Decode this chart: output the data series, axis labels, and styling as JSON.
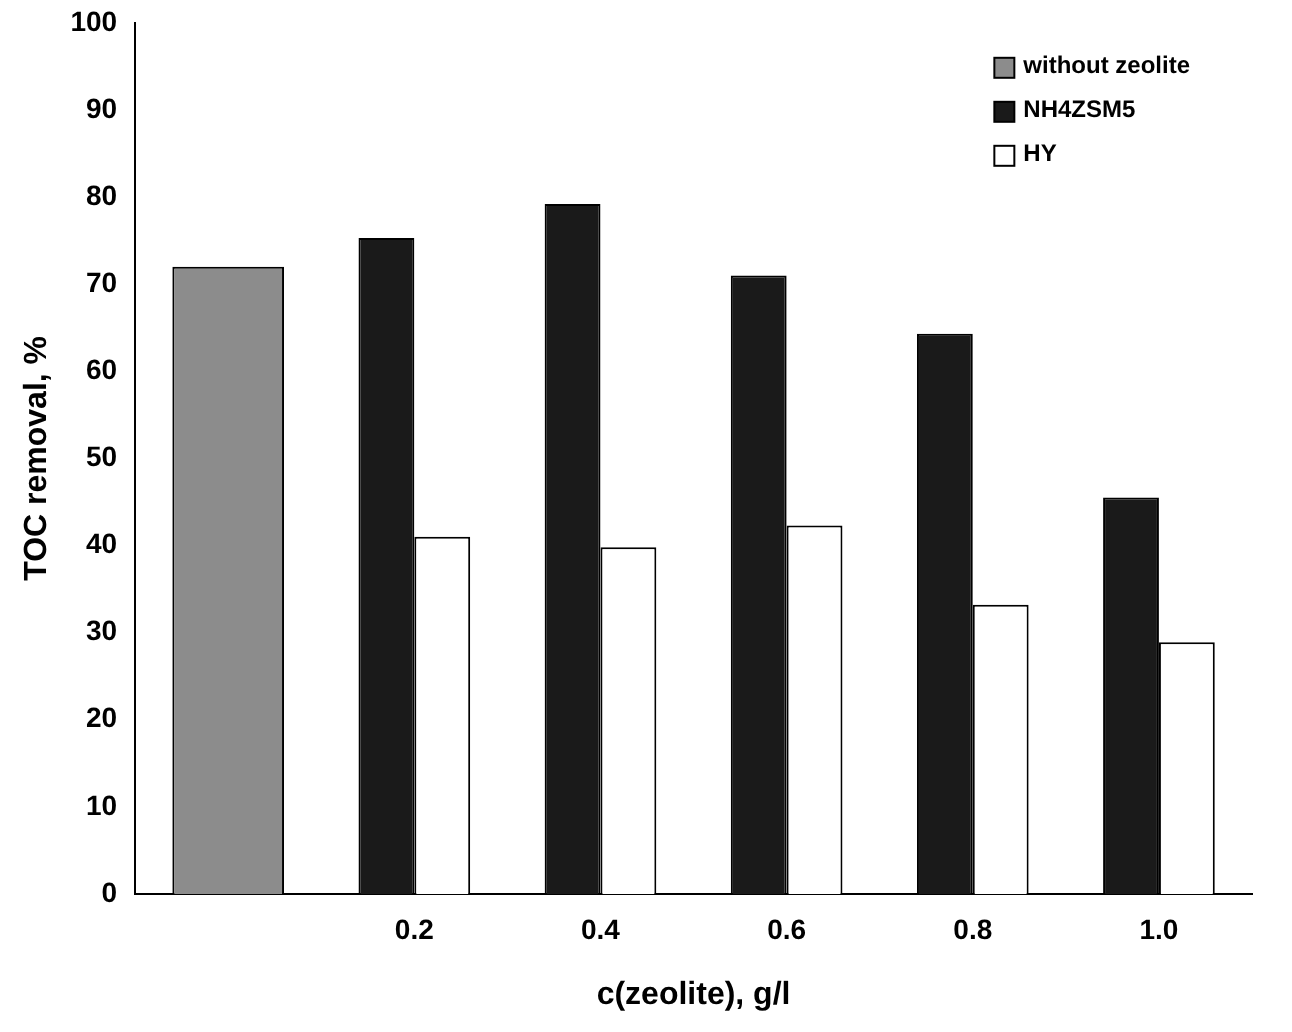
{
  "chart_data": {
    "type": "bar",
    "xlabel": "c(zeolite), g/l",
    "ylabel": "TOC removal, %",
    "categories": [
      null,
      "0.2",
      "0.4",
      "0.6",
      "0.8",
      "1.0"
    ],
    "series": [
      {
        "name": "without zeolite",
        "color": "#8c8c8c",
        "values": [
          72,
          null,
          null,
          null,
          null,
          null
        ]
      },
      {
        "name": "NH4ZSM5",
        "color": "#1a1a1a",
        "values": [
          null,
          75.3,
          79.2,
          71,
          64.3,
          45.5
        ]
      },
      {
        "name": "HY",
        "color": "#ffffff",
        "values": [
          null,
          41,
          39.8,
          42.3,
          33.2,
          28.9
        ]
      }
    ],
    "ylim": [
      0,
      100
    ],
    "yticks": [
      0,
      10,
      20,
      30,
      40,
      50,
      60,
      70,
      80,
      90,
      100
    ],
    "grid": false,
    "legend": "top right"
  }
}
